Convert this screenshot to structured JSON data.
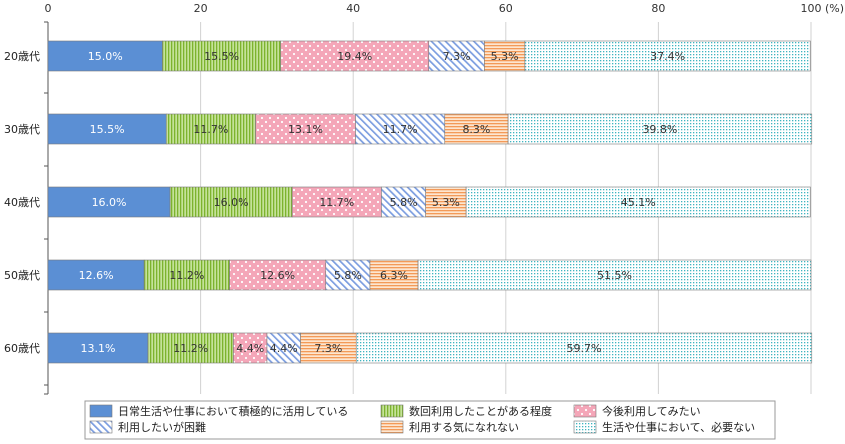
{
  "chart_data": {
    "type": "bar",
    "orientation": "horizontal",
    "stacked": true,
    "categories": [
      "20歳代",
      "30歳代",
      "40歳代",
      "50歳代",
      "60歳代"
    ],
    "series": [
      {
        "name": "日常生活や仕事において積極的に活用している",
        "values": [
          15.0,
          15.5,
          16.0,
          12.6,
          13.1
        ],
        "labels": [
          "15.0%",
          "15.5%",
          "16.0%",
          "12.6%",
          "13.1%"
        ],
        "color": "#5b8fd4",
        "pattern": "solid"
      },
      {
        "name": "数回利用したことがある程度",
        "values": [
          15.5,
          11.7,
          16.0,
          11.2,
          11.2
        ],
        "labels": [
          "15.5%",
          "11.7%",
          "16.0%",
          "11.2%",
          "11.2%"
        ],
        "color": "#8fc63f",
        "pattern": "vertical-lines"
      },
      {
        "name": "今後利用してみたい",
        "values": [
          19.4,
          13.1,
          11.7,
          12.6,
          4.4
        ],
        "labels": [
          "19.4%",
          "13.1%",
          "11.7%",
          "12.6%",
          "4.4%"
        ],
        "color": "#f4a6b8",
        "pattern": "dots"
      },
      {
        "name": "利用したいが困難",
        "values": [
          7.3,
          11.7,
          5.8,
          5.8,
          4.4
        ],
        "labels": [
          "7.3%",
          "11.7%",
          "5.8%",
          "5.8%",
          "4.4%"
        ],
        "color": "#8aa8e0",
        "pattern": "diagonal-lines"
      },
      {
        "name": "利用する気になれない",
        "values": [
          5.3,
          8.3,
          5.3,
          6.3,
          7.3
        ],
        "labels": [
          "5.3%",
          "8.3%",
          "5.3%",
          "6.3%",
          "7.3%"
        ],
        "color": "#f6b27a",
        "pattern": "horizontal-lines"
      },
      {
        "name": "生活や仕事において、必要ない",
        "values": [
          37.4,
          39.8,
          45.1,
          51.5,
          59.7
        ],
        "labels": [
          "37.4%",
          "39.8%",
          "45.1%",
          "51.5%",
          "59.7%"
        ],
        "color": "#46c1c9",
        "pattern": "grid-dots"
      }
    ],
    "xlim": [
      0,
      100
    ],
    "x_ticks": [
      "0",
      "20",
      "40",
      "60",
      "80",
      "100"
    ],
    "x_unit": "(%)",
    "legend_position": "bottom",
    "grid": true,
    "legend_rows": [
      [
        0,
        1,
        2
      ],
      [
        3,
        4,
        5
      ]
    ]
  }
}
